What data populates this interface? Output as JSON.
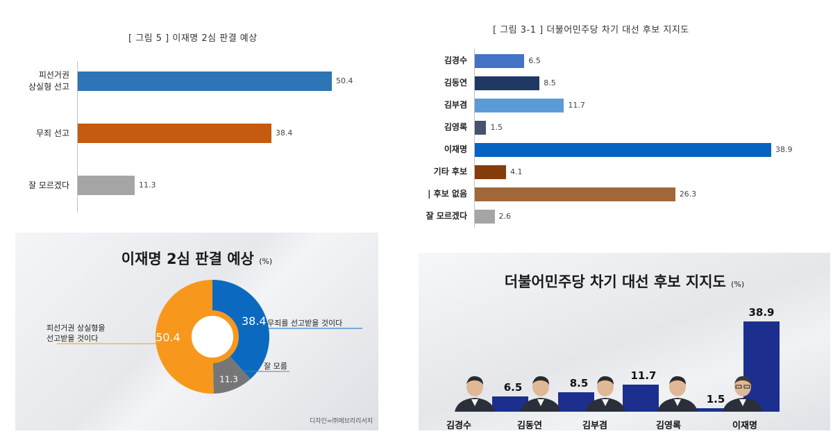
{
  "chart_data": [
    {
      "type": "bar",
      "orientation": "horizontal",
      "title": "[ 그림 5 ] 이재명 2심 판결 예상",
      "categories": [
        [
          "피선거권",
          "상실형 선고"
        ],
        [
          "무죄 선고"
        ],
        [
          "잘 모르겠다"
        ]
      ],
      "values": [
        50.4,
        38.4,
        11.3
      ],
      "value_labels": [
        "50.4",
        "38.4",
        "11.3"
      ],
      "colors": [
        "#2e75b6",
        "#c55a11",
        "#a5a5a5"
      ],
      "xlim": [
        0,
        60
      ],
      "grid": false
    },
    {
      "type": "bar",
      "orientation": "horizontal",
      "title": "[ 그림 3-1 ] 더불어민주당 차기 대선 후보 지지도",
      "categories": [
        "김경수",
        "김동연",
        "김부겸",
        "김영록",
        "이재명",
        "기타 후보",
        "| 후보 없음",
        "잘 모르겠다"
      ],
      "values": [
        6.5,
        8.5,
        11.7,
        1.5,
        38.9,
        4.1,
        26.3,
        2.6
      ],
      "value_labels": [
        "6.5",
        "8.5",
        "11.7",
        "1.5",
        "38.9",
        "4.1",
        "26.3",
        "2.6"
      ],
      "colors": [
        "#4472c4",
        "#203864",
        "#5b9bd5",
        "#44546a",
        "#0563c1",
        "#843c0c",
        "#a0673a",
        "#a5a5a5"
      ],
      "xlim": [
        0,
        40
      ],
      "grid": false
    },
    {
      "type": "pie",
      "donut": true,
      "title": "이재명 2심 판결 예상",
      "unit": "(%)",
      "slices": [
        {
          "label": "무죄를 선고받을 것이다",
          "value": 38.4,
          "value_label": "38.4",
          "color": "#0b6abf"
        },
        {
          "label": "잘 모름",
          "value": 11.3,
          "value_label": "11.3",
          "color": "#767676"
        },
        {
          "label": "피선거권 상실형을 선고받을 것이다",
          "value": 50.4,
          "value_label": "50.4",
          "color": "#f7981d"
        }
      ],
      "annotations": {
        "left": [
          "피선거권 상실형을",
          "선고받을 것이다"
        ],
        "right_top": "무죄를 선고받을 것이다",
        "right_bottom": "잘 모름"
      },
      "credit": "디자인=㈜에브리리서치"
    },
    {
      "type": "bar",
      "orientation": "vertical",
      "title": "더불어민주당 차기 대선 후보 지지도",
      "unit": "(%)",
      "categories": [
        "김경수",
        "김동연",
        "김부겸",
        "김영록",
        "이재명"
      ],
      "values": [
        6.5,
        8.5,
        11.7,
        1.5,
        38.9
      ],
      "value_labels": [
        "6.5",
        "8.5",
        "11.7",
        "1.5",
        "38.9"
      ],
      "color": "#1c2f8e",
      "ylim": [
        0,
        40
      ],
      "grid": false
    }
  ]
}
